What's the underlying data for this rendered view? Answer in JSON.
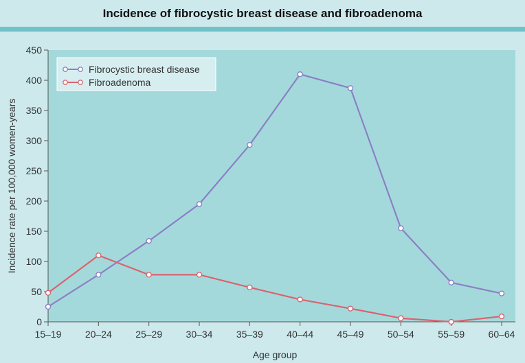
{
  "header": {
    "title": "Incidence of fibrocystic breast disease and fibroadenoma"
  },
  "colors": {
    "plot_bg": "#a4d9dc",
    "fibrocystic": "#8a80c4",
    "fibroadenoma": "#d9646f",
    "header_rule": "#6fc3c8"
  },
  "chart_data": {
    "type": "line",
    "title": "Incidence of fibrocystic breast disease and fibroadenoma",
    "xlabel": "Age group",
    "ylabel": "Incidence rate per 100,000 women-years",
    "categories": [
      "15–19",
      "20–24",
      "25–29",
      "30–34",
      "35–39",
      "40–44",
      "45–49",
      "50–54",
      "55–59",
      "60–64"
    ],
    "ylim": [
      0,
      450
    ],
    "yticks": [
      0,
      50,
      100,
      150,
      200,
      250,
      300,
      350,
      400,
      450
    ],
    "grid": false,
    "legend_position": "top-left",
    "series": [
      {
        "name": "Fibrocystic breast disease",
        "color": "#8a80c4",
        "values": [
          25,
          78,
          134,
          195,
          293,
          410,
          387,
          155,
          65,
          47
        ]
      },
      {
        "name": "Fibroadenoma",
        "color": "#d9646f",
        "values": [
          48,
          110,
          78,
          78,
          57,
          37,
          22,
          6,
          0,
          9
        ]
      }
    ]
  }
}
